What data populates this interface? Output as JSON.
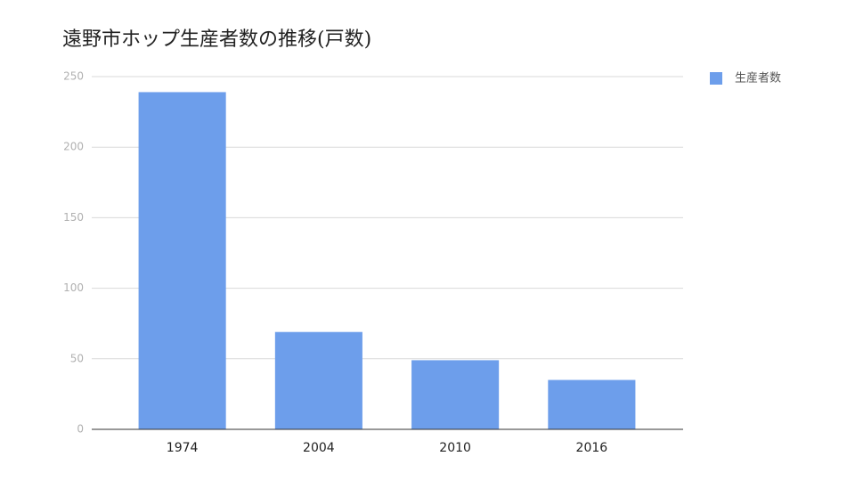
{
  "chart_data": {
    "type": "bar",
    "title": "遠野市ホップ生産者数の推移(戸数)",
    "categories": [
      "1974",
      "2004",
      "2010",
      "2016"
    ],
    "series": [
      {
        "name": "生産者数",
        "color": "#6d9eeb",
        "values": [
          239,
          69,
          49,
          35
        ]
      }
    ],
    "ylim": [
      0,
      250
    ],
    "yticks": [
      0,
      50,
      100,
      150,
      200,
      250
    ],
    "grid": true,
    "legend": "right"
  }
}
